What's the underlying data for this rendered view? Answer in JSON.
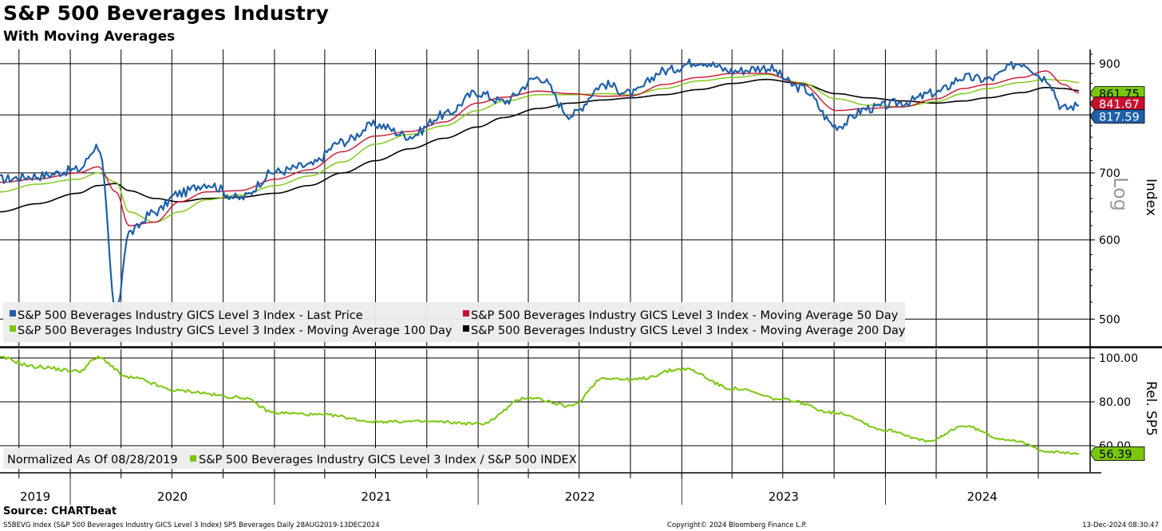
{
  "title": "S&P 500 Beverages Industry",
  "subtitle": "With Moving Averages",
  "source": "Source: CHARTbeat",
  "footer_left": "S5BEVG Index (S&P 500 Beverages Industry GICS Level 3 Index) SP5 Beverages  Daily 28AUG2019-13DEC2024",
  "footer_center": "Copyright© 2024 Bloomberg Finance L.P.",
  "footer_right": "13-Dec-2024 08:30:47",
  "colors": {
    "price": "#1f5fa8",
    "ma50": "#c8102e",
    "ma100": "#7ac70c",
    "ma200": "#000000",
    "rel": "#7ac70c"
  },
  "chart_data": [
    {
      "type": "line",
      "scale": "log",
      "ylabel": "Index",
      "scale_label": "Log",
      "ylim": [
        470,
        930
      ],
      "yticks": [
        500,
        600,
        700,
        800,
        900
      ],
      "x": [
        "2019-08-28",
        "2019-11-01",
        "2020-01-15",
        "2020-02-20",
        "2020-03-23",
        "2020-04-15",
        "2020-06-01",
        "2020-07-15",
        "2020-09-01",
        "2020-10-30",
        "2021-01-04",
        "2021-03-04",
        "2021-05-03",
        "2021-07-01",
        "2021-09-01",
        "2021-11-01",
        "2021-12-31",
        "2022-02-15",
        "2022-04-20",
        "2022-06-16",
        "2022-08-15",
        "2022-10-03",
        "2022-11-30",
        "2023-02-01",
        "2023-04-03",
        "2023-06-01",
        "2023-08-01",
        "2023-10-06",
        "2023-12-01",
        "2024-02-01",
        "2024-04-01",
        "2024-05-20",
        "2024-07-01",
        "2024-09-01",
        "2024-10-15",
        "2024-11-15",
        "2024-12-13"
      ],
      "series": [
        {
          "name": "S&P 500 Beverages Industry GICS Level 3 Index - Last Price",
          "values": [
            690,
            695,
            705,
            745,
            505,
            610,
            640,
            668,
            683,
            660,
            702,
            712,
            752,
            782,
            762,
            800,
            842,
            825,
            872,
            800,
            858,
            840,
            885,
            905,
            885,
            892,
            852,
            780,
            812,
            823,
            842,
            872,
            868,
            902,
            870,
            812,
            817.59
          ]
        },
        {
          "name": "S&P 500 Beverages Industry GICS Level 3 Index - Moving Average 50 Day",
          "values": [
            685,
            690,
            700,
            710,
            670,
            620,
            625,
            655,
            670,
            672,
            690,
            705,
            735,
            762,
            770,
            787,
            822,
            833,
            845,
            840,
            835,
            836,
            858,
            872,
            880,
            880,
            860,
            808,
            812,
            815,
            830,
            850,
            858,
            872,
            885,
            858,
            841.67
          ]
        },
        {
          "name": "S&P 500 Beverages Industry GICS Level 3 Index - Moving Average 100 Day",
          "values": [
            670,
            682,
            690,
            700,
            685,
            640,
            625,
            640,
            658,
            665,
            680,
            695,
            718,
            748,
            765,
            780,
            808,
            825,
            838,
            838,
            840,
            838,
            850,
            865,
            872,
            878,
            862,
            830,
            818,
            815,
            825,
            840,
            850,
            862,
            868,
            866,
            861.75
          ]
        },
        {
          "name": "S&P 500 Beverages Industry GICS Level 3 Index - Moving Average 200 Day",
          "values": [
            640,
            652,
            668,
            680,
            683,
            672,
            660,
            655,
            660,
            662,
            668,
            680,
            700,
            720,
            740,
            758,
            778,
            795,
            812,
            822,
            828,
            832,
            838,
            848,
            860,
            868,
            860,
            840,
            832,
            826,
            822,
            826,
            832,
            842,
            852,
            850,
            846.0
          ]
        }
      ],
      "last_labels": [
        "861.75",
        "841.67",
        "817.59"
      ]
    },
    {
      "type": "line",
      "ylabel": "Rel. SP5",
      "ylim": [
        48,
        104
      ],
      "yticks": [
        60,
        80,
        100
      ],
      "ytick_labels": [
        "60.00",
        "80.00",
        "100.00"
      ],
      "note": "Normalized As Of 08/28/2019",
      "x": [
        "2019-08-28",
        "2019-11-01",
        "2020-01-15",
        "2020-02-20",
        "2020-04-15",
        "2020-07-15",
        "2020-11-01",
        "2021-01-04",
        "2021-04-01",
        "2021-07-01",
        "2021-10-01",
        "2022-01-04",
        "2022-04-01",
        "2022-06-16",
        "2022-08-15",
        "2022-10-03",
        "2023-01-04",
        "2023-04-03",
        "2023-07-03",
        "2023-10-06",
        "2024-01-04",
        "2024-03-20",
        "2024-05-20",
        "2024-08-01",
        "2024-11-01",
        "2024-12-13"
      ],
      "series": [
        {
          "name": "S&P 500 Beverages Industry GICS Level 3 Index / S&P 500 INDEX",
          "values": [
            100,
            96,
            94,
            100,
            91,
            85,
            82,
            75,
            74,
            71,
            71,
            70,
            82,
            78,
            91,
            90,
            95,
            86,
            81,
            75,
            67,
            62,
            69,
            63,
            57,
            56.39
          ]
        }
      ],
      "last_label": "56.39"
    }
  ],
  "x_axis": {
    "year_labels": [
      "2019",
      "2020",
      "2021",
      "2022",
      "2023",
      "2024"
    ]
  },
  "legend_top": {
    "items": [
      {
        "label": "S&P 500 Beverages Industry GICS Level 3 Index - Last Price"
      },
      {
        "label": "S&P 500 Beverages Industry GICS Level 3 Index - Moving Average 50 Day"
      },
      {
        "label": "S&P 500 Beverages Industry GICS Level 3 Index - Moving Average 100 Day"
      },
      {
        "label": "S&P 500 Beverages Industry GICS Level 3 Index - Moving Average 200 Day"
      }
    ]
  },
  "legend_bottom": {
    "note": "Normalized As Of 08/28/2019",
    "item": "S&P 500 Beverages Industry GICS Level 3 Index / S&P 500 INDEX"
  }
}
